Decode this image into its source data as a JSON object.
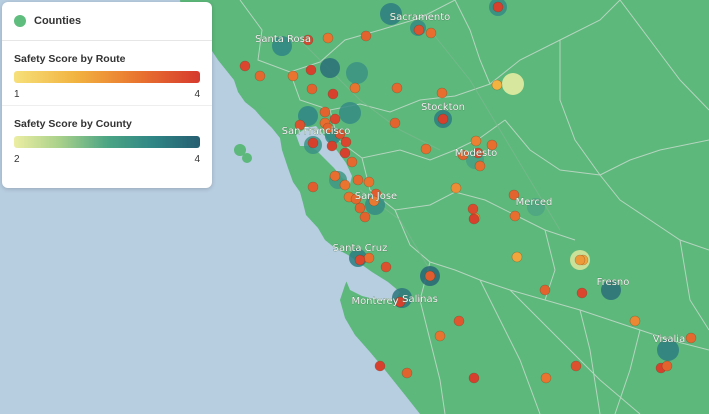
{
  "legend": {
    "layer_name": "Counties",
    "route": {
      "title": "Safety Score by Route",
      "min": "1",
      "max": "4"
    },
    "county": {
      "title": "Safety Score by County",
      "min": "2",
      "max": "4"
    }
  },
  "colors": {
    "land": "#5cb87b",
    "water": "#b7cde0",
    "boundary": "#bfd8c6",
    "route_low": "#f6e07a",
    "route_mid": "#e9742f",
    "route_high": "#d63a2e",
    "county_low": "#eceea3",
    "county_high": "#265e71"
  },
  "cities": [
    {
      "name": "Sacramento"
    },
    {
      "name": "Santa Rosa"
    },
    {
      "name": "Stockton"
    },
    {
      "name": "San Francisco"
    },
    {
      "name": "Modesto"
    },
    {
      "name": "San Jose"
    },
    {
      "name": "Merced"
    },
    {
      "name": "Santa Cruz"
    },
    {
      "name": "Salinas"
    },
    {
      "name": "Monterey"
    },
    {
      "name": "Fresno"
    },
    {
      "name": "Visalia"
    }
  ],
  "county_markers": [
    {
      "score": 3.6
    },
    {
      "score": 3.4
    },
    {
      "score": 3.5
    },
    {
      "score": 3.8
    },
    {
      "score": 3.3
    },
    {
      "score": 3.5
    },
    {
      "score": 3.4
    },
    {
      "score": 3.6
    },
    {
      "score": 3.3
    },
    {
      "score": 3.2
    },
    {
      "score": 3.1
    },
    {
      "score": 3.4
    },
    {
      "score": 3.0
    },
    {
      "score": 3.9
    },
    {
      "score": 3.7
    },
    {
      "score": 2.0
    },
    {
      "score": 2.1
    },
    {
      "score": 3.8
    },
    {
      "score": 3.6
    },
    {
      "score": 3.6
    },
    {
      "score": 3.5
    },
    {
      "score": 3.4
    }
  ],
  "route_markers": [
    {
      "score": 3.9
    },
    {
      "score": 3.0
    },
    {
      "score": 3.3
    },
    {
      "score": 3.6
    },
    {
      "score": 3.1
    },
    {
      "score": 3.8
    },
    {
      "score": 3.2
    },
    {
      "score": 3.0
    },
    {
      "score": 3.9
    },
    {
      "score": 2.0
    },
    {
      "score": 3.9
    },
    {
      "score": 3.0
    },
    {
      "score": 3.3
    },
    {
      "score": 3.2
    },
    {
      "score": 3.9
    },
    {
      "score": 3.1
    },
    {
      "score": 3.3
    },
    {
      "score": 3.1
    },
    {
      "score": 3.9
    },
    {
      "score": 3.9
    },
    {
      "score": 3.6
    },
    {
      "score": 3.3
    },
    {
      "score": 3.9
    },
    {
      "score": 3.2
    },
    {
      "score": 3.1
    },
    {
      "score": 2.8
    },
    {
      "score": 3.8
    },
    {
      "score": 3.1
    },
    {
      "score": 3.3
    },
    {
      "score": 3.4
    },
    {
      "score": 3.1
    },
    {
      "score": 3.0
    },
    {
      "score": 3.2
    },
    {
      "score": 3.0
    },
    {
      "score": 2.6
    },
    {
      "score": 3.4
    },
    {
      "score": 2.5
    },
    {
      "score": 3.3
    },
    {
      "score": 3.0
    },
    {
      "score": 2.9
    },
    {
      "score": 3.7
    },
    {
      "score": 3.3
    },
    {
      "score": 3.1
    },
    {
      "score": 3.3
    },
    {
      "score": 3.1
    },
    {
      "score": 3.6
    },
    {
      "score": 3.8
    },
    {
      "score": 2.2
    },
    {
      "score": 3.3
    },
    {
      "score": 3.8
    },
    {
      "score": 3.4
    },
    {
      "score": 2.2
    },
    {
      "score": 3.9
    },
    {
      "score": 3.5
    },
    {
      "score": 3.0
    },
    {
      "score": 2.7
    },
    {
      "score": 3.2
    },
    {
      "score": 3.9
    },
    {
      "score": 3.3
    },
    {
      "score": 3.9
    },
    {
      "score": 3.0
    },
    {
      "score": 3.6
    },
    {
      "score": 3.9
    },
    {
      "score": 3.3
    },
    {
      "score": 3.8
    },
    {
      "score": 3.8
    },
    {
      "score": 3.6
    },
    {
      "score": 3.1
    },
    {
      "score": 3.9
    },
    {
      "score": 2.4
    },
    {
      "score": 3.2
    },
    {
      "score": 3.3
    },
    {
      "score": 3.8
    },
    {
      "score": 3.9
    },
    {
      "score": 3.9
    },
    {
      "score": 3.9
    },
    {
      "score": 3.9
    },
    {
      "score": 3.9
    },
    {
      "score": 3.5
    },
    {
      "score": 3.4
    },
    {
      "score": 3.9
    },
    {
      "score": 3.1
    },
    {
      "score": 3.2
    }
  ]
}
